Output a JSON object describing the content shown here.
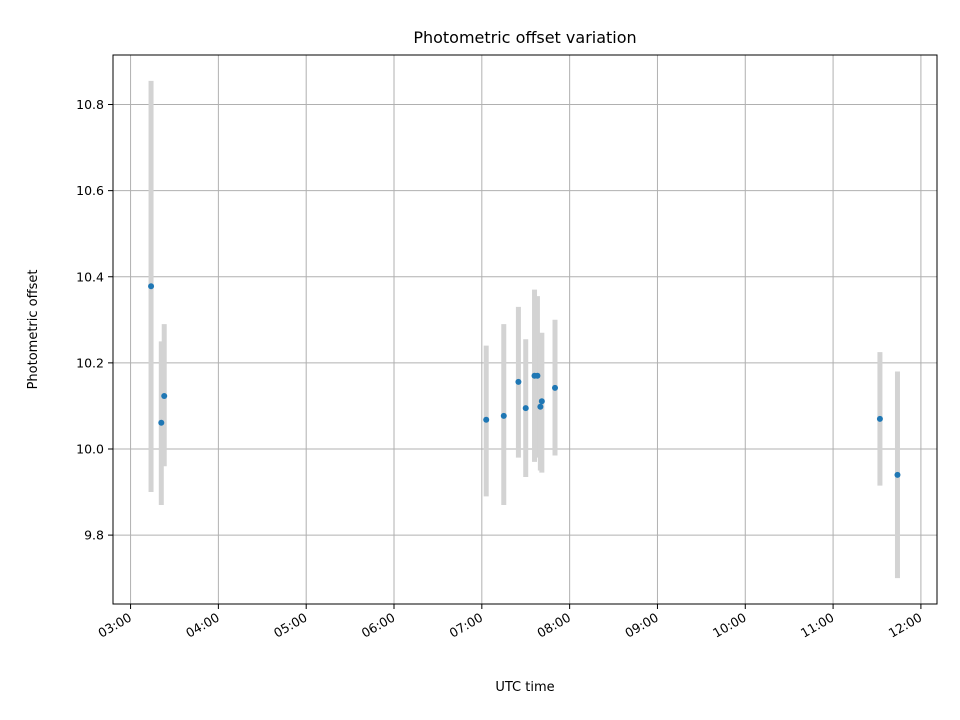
{
  "chart_data": {
    "type": "scatter",
    "title": "Photometric offset variation",
    "xlabel": "UTC time",
    "ylabel": "Photometric offset",
    "xlim": [
      "02:48",
      "12:11"
    ],
    "ylim": [
      9.64,
      10.915
    ],
    "xticks": [
      "03:00",
      "04:00",
      "05:00",
      "06:00",
      "07:00",
      "08:00",
      "09:00",
      "10:00",
      "11:00",
      "12:00"
    ],
    "yticks": [
      "9.8",
      "10.0",
      "10.2",
      "10.4",
      "10.6",
      "10.8"
    ],
    "grid": true,
    "colors": {
      "point": "#1f77b4",
      "errorbar": "#d3d3d3",
      "grid": "#b0b0b0"
    },
    "points": [
      {
        "x": "03:14",
        "y": 10.378,
        "ylow": 9.9,
        "yhigh": 10.855
      },
      {
        "x": "03:21",
        "y": 10.061,
        "ylow": 9.87,
        "yhigh": 10.25
      },
      {
        "x": "03:23",
        "y": 10.123,
        "ylow": 9.96,
        "yhigh": 10.29
      },
      {
        "x": "07:03",
        "y": 10.068,
        "ylow": 9.89,
        "yhigh": 10.24
      },
      {
        "x": "07:15",
        "y": 10.077,
        "ylow": 9.87,
        "yhigh": 10.29
      },
      {
        "x": "07:25",
        "y": 10.156,
        "ylow": 9.98,
        "yhigh": 10.33
      },
      {
        "x": "07:30",
        "y": 10.095,
        "ylow": 9.935,
        "yhigh": 10.255
      },
      {
        "x": "07:36",
        "y": 10.17,
        "ylow": 9.97,
        "yhigh": 10.37
      },
      {
        "x": "07:38",
        "y": 10.17,
        "ylow": 9.98,
        "yhigh": 10.355
      },
      {
        "x": "07:40",
        "y": 10.098,
        "ylow": 9.95,
        "yhigh": 10.24
      },
      {
        "x": "07:41",
        "y": 10.111,
        "ylow": 9.945,
        "yhigh": 10.27
      },
      {
        "x": "07:50",
        "y": 10.142,
        "ylow": 9.985,
        "yhigh": 10.3
      },
      {
        "x": "11:32",
        "y": 10.07,
        "ylow": 9.915,
        "yhigh": 10.225
      },
      {
        "x": "11:44",
        "y": 9.94,
        "ylow": 9.7,
        "yhigh": 10.18
      }
    ]
  }
}
